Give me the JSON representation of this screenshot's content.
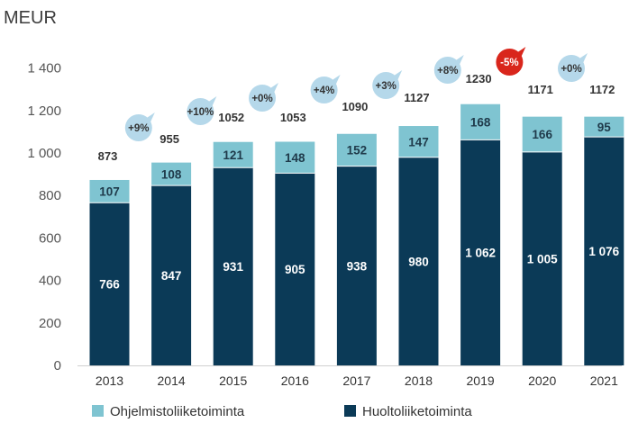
{
  "chart_data": {
    "type": "bar",
    "stacked": true,
    "ylabel": "MEUR",
    "ylim": [
      0,
      1400
    ],
    "yticks": [
      0,
      200,
      400,
      600,
      800,
      1000,
      1200,
      1400
    ],
    "ytick_labels": [
      "0",
      "200",
      "400",
      "600",
      "800",
      "1 000",
      "1 200",
      "1 400"
    ],
    "categories": [
      "2013",
      "2014",
      "2015",
      "2016",
      "2017",
      "2018",
      "2019",
      "2020",
      "2021"
    ],
    "series": [
      {
        "name": "Huoltoliiketoiminta",
        "color": "#0b3a57",
        "values": [
          766,
          847,
          931,
          905,
          938,
          980,
          1062,
          1005,
          1076
        ],
        "labels": [
          "766",
          "847",
          "931",
          "905",
          "938",
          "980",
          "1 062",
          "1 005",
          "1 076"
        ]
      },
      {
        "name": "Ohjelmistoliiketoiminta",
        "color": "#7fc4d1",
        "values": [
          107,
          108,
          121,
          148,
          152,
          147,
          168,
          166,
          95
        ],
        "labels": [
          "107",
          "108",
          "121",
          "148",
          "152",
          "147",
          "168",
          "166",
          "95"
        ]
      }
    ],
    "totals": [
      "873",
      "955",
      "1052",
      "1053",
      "1090",
      "1127",
      "1230",
      "1171",
      "1172"
    ],
    "growth": [
      {
        "label": "+9%",
        "between": [
          "2013",
          "2014"
        ],
        "color": "#b5d8ea",
        "text_color": "#333333"
      },
      {
        "label": "+10%",
        "between": [
          "2014",
          "2015"
        ],
        "color": "#b5d8ea",
        "text_color": "#333333"
      },
      {
        "label": "+0%",
        "between": [
          "2015",
          "2016"
        ],
        "color": "#b5d8ea",
        "text_color": "#333333"
      },
      {
        "label": "+4%",
        "between": [
          "2016",
          "2017"
        ],
        "color": "#b5d8ea",
        "text_color": "#333333"
      },
      {
        "label": "+3%",
        "between": [
          "2017",
          "2018"
        ],
        "color": "#b5d8ea",
        "text_color": "#333333"
      },
      {
        "label": "+8%",
        "between": [
          "2018",
          "2019"
        ],
        "color": "#b5d8ea",
        "text_color": "#333333"
      },
      {
        "label": "-5%",
        "between": [
          "2019",
          "2020"
        ],
        "color": "#d9261c",
        "text_color": "#ffffff"
      },
      {
        "label": "+0%",
        "between": [
          "2020",
          "2021"
        ],
        "color": "#b5d8ea",
        "text_color": "#333333"
      }
    ],
    "legend": [
      {
        "name": "Ohjelmistoliiketoiminta",
        "color": "#7fc4d1"
      },
      {
        "name": "Huoltoliiketoiminta",
        "color": "#0b3a57"
      }
    ],
    "legend_position": "bottom-left",
    "grid": false
  }
}
